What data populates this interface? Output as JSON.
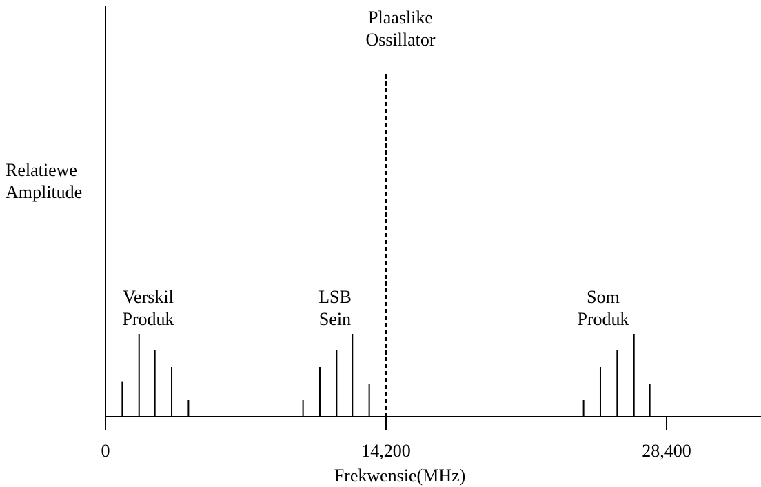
{
  "chart_data": {
    "type": "bar",
    "title": "",
    "xlabel": "Frekwensie(MHz)",
    "ylabel_lines": [
      "Relatiewe",
      "Amplitude"
    ],
    "x_tick_labels": [
      {
        "value": 0,
        "label": "0"
      },
      {
        "value": 14200,
        "label": "14,200"
      },
      {
        "value": 28400,
        "label": "28,400"
      }
    ],
    "xlim": [
      0,
      33000
    ],
    "ylim": [
      0,
      5.2
    ],
    "groups": [
      {
        "name_lines": [
          "Verskil",
          "Produk"
        ],
        "lines": [
          {
            "x": 850,
            "amplitude": 0.42
          },
          {
            "x": 1700,
            "amplitude": 1.0
          },
          {
            "x": 2500,
            "amplitude": 0.8
          },
          {
            "x": 3350,
            "amplitude": 0.6
          },
          {
            "x": 4200,
            "amplitude": 0.2
          }
        ]
      },
      {
        "name_lines": [
          "LSB",
          "Sein"
        ],
        "lines": [
          {
            "x": 10000,
            "amplitude": 0.2
          },
          {
            "x": 10850,
            "amplitude": 0.6
          },
          {
            "x": 11700,
            "amplitude": 0.8
          },
          {
            "x": 12500,
            "amplitude": 1.0
          },
          {
            "x": 13350,
            "amplitude": 0.4
          }
        ]
      },
      {
        "name_lines": [
          "Som",
          "Produk"
        ],
        "lines": [
          {
            "x": 24200,
            "amplitude": 0.2
          },
          {
            "x": 25050,
            "amplitude": 0.6
          },
          {
            "x": 25900,
            "amplitude": 0.8
          },
          {
            "x": 26750,
            "amplitude": 1.0
          },
          {
            "x": 27550,
            "amplitude": 0.4
          }
        ]
      }
    ],
    "local_oscillator": {
      "name_lines": [
        "Plaaslike",
        "Ossillator"
      ],
      "x": 14200,
      "style": "dashed"
    },
    "grid": false
  }
}
